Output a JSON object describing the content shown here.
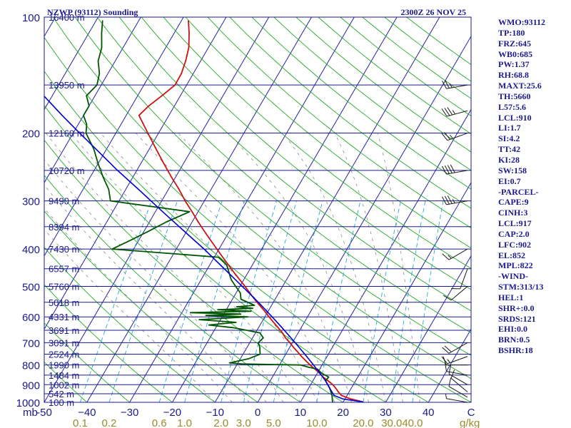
{
  "header": {
    "title": "NZWP (93112) Sounding",
    "datetime": "2300Z 26 NOV 25"
  },
  "indices": [
    "WMO:93112",
    "TP:180",
    "FRZ:645",
    "WB0:685",
    "PW:1.37",
    "RH:68.8",
    "MAXT:25.6",
    "TH:5660",
    "L57:5.6",
    "LCL:910",
    "LI:1.7",
    "SI:4.2",
    "TT:42",
    "KI:28",
    "SW:158",
    "EI:0.7",
    "-PARCEL-",
    "CAPE:9",
    "CINH:3",
    "LCL:917",
    "CAP:2.0",
    "LFC:902",
    "EL:852",
    "MPL:822",
    "-WIND-",
    "STM:313/13",
    "HEL:1",
    "SHR+:0.0",
    "SRDS:121",
    "EHI:0.0",
    "BRN:0.5",
    "BSHR:18"
  ],
  "chart_data": {
    "type": "line",
    "subtype": "skew-t log-p sounding",
    "y_scale": "log",
    "ylim": [
      1000,
      100
    ],
    "xlim": [
      -50,
      50
    ],
    "pressure_units": "mb",
    "mixing_ratio_units": "g/kg",
    "pressure_ticks": [
      {
        "value": 100,
        "label": "100"
      },
      {
        "value": 200,
        "label": "200"
      },
      {
        "value": 300,
        "label": "300"
      },
      {
        "value": 400,
        "label": "400"
      },
      {
        "value": 500,
        "label": "500"
      },
      {
        "value": 600,
        "label": "600"
      },
      {
        "value": 700,
        "label": "700"
      },
      {
        "value": 800,
        "label": "800"
      },
      {
        "value": 900,
        "label": "900"
      },
      {
        "value": 1000,
        "label": "1000"
      }
    ],
    "temperature_ticks": [
      {
        "value": -50,
        "label": "-50"
      },
      {
        "value": -40,
        "label": "−40"
      },
      {
        "value": -30,
        "label": "−30"
      },
      {
        "value": -20,
        "label": "−20"
      },
      {
        "value": -10,
        "label": "−10"
      },
      {
        "value": 0,
        "label": "0"
      },
      {
        "value": 10,
        "label": "10"
      },
      {
        "value": 20,
        "label": "20"
      },
      {
        "value": 30,
        "label": "30"
      },
      {
        "value": 40,
        "label": "40"
      },
      {
        "value": 50,
        "label": "C"
      }
    ],
    "mixing_ratio_ticks": [
      {
        "value": 0.1,
        "label": "0.1"
      },
      {
        "value": 0.2,
        "label": "0.2"
      },
      {
        "value": 0.6,
        "label": "0.6"
      },
      {
        "value": 1.0,
        "label": "1.0"
      },
      {
        "value": 2.0,
        "label": "2.0"
      },
      {
        "value": 3.0,
        "label": "3.0"
      },
      {
        "value": 5.0,
        "label": "5.0"
      },
      {
        "value": 10.0,
        "label": "10.0"
      },
      {
        "value": 20.0,
        "label": "20.0"
      },
      {
        "value": 30.0,
        "label": "30.0"
      },
      {
        "value": 40.0,
        "label": "40.0"
      }
    ],
    "height_labels": [
      {
        "p": 100,
        "label": "16400 m"
      },
      {
        "p": 150,
        "label": "13950 m"
      },
      {
        "p": 200,
        "label": "12160 m"
      },
      {
        "p": 250,
        "label": "10720 m"
      },
      {
        "p": 300,
        "label": "9490 m"
      },
      {
        "p": 350,
        "label": "8394 m"
      },
      {
        "p": 400,
        "label": "7430 m"
      },
      {
        "p": 450,
        "label": "6557 m"
      },
      {
        "p": 500,
        "label": "5760 m"
      },
      {
        "p": 550,
        "label": "5018 m"
      },
      {
        "p": 600,
        "label": "4331 m"
      },
      {
        "p": 650,
        "label": "3691 m"
      },
      {
        "p": 700,
        "label": "3091 m"
      },
      {
        "p": 750,
        "label": "2524 m"
      },
      {
        "p": 800,
        "label": "1990 m"
      },
      {
        "p": 850,
        "label": "1484 m"
      },
      {
        "p": 900,
        "label": "1002 m"
      },
      {
        "p": 950,
        "label": "542 m"
      },
      {
        "p": 1000,
        "label": "100 m"
      }
    ],
    "temperature_profile": [
      [
        998,
        24.7
      ],
      [
        980,
        21.4
      ],
      [
        960,
        18.7
      ],
      [
        940,
        17.5
      ],
      [
        920,
        16.4
      ],
      [
        900,
        15.2
      ],
      [
        880,
        13.6
      ],
      [
        860,
        11.9
      ],
      [
        840,
        10.5
      ],
      [
        820,
        8.9
      ],
      [
        800,
        7.2
      ],
      [
        780,
        5.6
      ],
      [
        760,
        4.0
      ],
      [
        740,
        2.5
      ],
      [
        720,
        0.9
      ],
      [
        700,
        -0.6
      ],
      [
        680,
        -2.3
      ],
      [
        660,
        -3.7
      ],
      [
        640,
        -5.4
      ],
      [
        620,
        -7.2
      ],
      [
        600,
        -9.0
      ],
      [
        580,
        -10.8
      ],
      [
        560,
        -12.8
      ],
      [
        540,
        -14.8
      ],
      [
        520,
        -16.8
      ],
      [
        500,
        -18.8
      ],
      [
        480,
        -21.0
      ],
      [
        460,
        -23.3
      ],
      [
        440,
        -25.6
      ],
      [
        420,
        -28.0
      ],
      [
        400,
        -30.5
      ],
      [
        380,
        -33.1
      ],
      [
        360,
        -35.8
      ],
      [
        340,
        -38.6
      ],
      [
        320,
        -41.4
      ],
      [
        300,
        -44.5
      ],
      [
        280,
        -47.5
      ],
      [
        260,
        -51.0
      ],
      [
        240,
        -54.6
      ],
      [
        220,
        -58.4
      ],
      [
        200,
        -62.5
      ],
      [
        190,
        -64.7
      ],
      [
        180,
        -67.0
      ],
      [
        170,
        -66.0
      ],
      [
        160,
        -64.3
      ],
      [
        150,
        -62.7
      ],
      [
        140,
        -62.8
      ],
      [
        130,
        -63.5
      ],
      [
        120,
        -64.6
      ],
      [
        110,
        -66.5
      ],
      [
        102,
        -68.4
      ]
    ],
    "dewpoint_profile": [
      [
        998,
        17.5
      ],
      [
        960,
        16.5
      ],
      [
        920,
        15.0
      ],
      [
        880,
        13.0
      ],
      [
        860,
        13.2
      ],
      [
        840,
        11.0
      ],
      [
        820,
        9.5
      ],
      [
        810,
        7.0
      ],
      [
        800,
        5.0
      ],
      [
        795,
        -9.0
      ],
      [
        790,
        -12.0
      ],
      [
        770,
        -8.0
      ],
      [
        750,
        -6.0
      ],
      [
        720,
        -7.0
      ],
      [
        700,
        -8.0
      ],
      [
        680,
        -7.5
      ],
      [
        660,
        -9.0
      ],
      [
        640,
        -16.0
      ],
      [
        630,
        -22.0
      ],
      [
        620,
        -16.0
      ],
      [
        610,
        -25.0
      ],
      [
        600,
        -14.0
      ],
      [
        595,
        -24.0
      ],
      [
        590,
        -16.0
      ],
      [
        585,
        -28.0
      ],
      [
        580,
        -14.0
      ],
      [
        575,
        -22.0
      ],
      [
        570,
        -14.0
      ],
      [
        565,
        -18.0
      ],
      [
        560,
        -14.0
      ],
      [
        540,
        -18.0
      ],
      [
        520,
        -19.0
      ],
      [
        500,
        -21.0
      ],
      [
        480,
        -23.0
      ],
      [
        440,
        -26.0
      ],
      [
        420,
        -29.0
      ],
      [
        400,
        -55.0
      ],
      [
        380,
        -52.0
      ],
      [
        360,
        -49.0
      ],
      [
        340,
        -46.0
      ],
      [
        320,
        -42.0
      ],
      [
        300,
        -62.0
      ],
      [
        280,
        -64.0
      ],
      [
        260,
        -67.0
      ],
      [
        240,
        -70.0
      ],
      [
        220,
        -73.0
      ],
      [
        200,
        -77.0
      ],
      [
        190,
        -78.0
      ],
      [
        180,
        -80.0
      ],
      [
        170,
        -80.0
      ],
      [
        160,
        -82.0
      ],
      [
        150,
        -81.0
      ],
      [
        140,
        -82.0
      ],
      [
        130,
        -84.0
      ],
      [
        120,
        -85.0
      ],
      [
        110,
        -87.0
      ],
      [
        102,
        -88.5
      ]
    ],
    "parcel_profile": [
      [
        998,
        24.7
      ],
      [
        980,
        19.5
      ],
      [
        960,
        17.0
      ],
      [
        940,
        16.0
      ],
      [
        920,
        15.0
      ],
      [
        900,
        14.0
      ],
      [
        880,
        13.0
      ],
      [
        860,
        11.8
      ],
      [
        840,
        10.6
      ],
      [
        820,
        9.3
      ],
      [
        800,
        8.0
      ],
      [
        760,
        5.2
      ],
      [
        720,
        2.2
      ],
      [
        680,
        -1.0
      ],
      [
        640,
        -4.5
      ],
      [
        600,
        -8.3
      ],
      [
        560,
        -12.4
      ],
      [
        520,
        -17.0
      ],
      [
        480,
        -22.0
      ],
      [
        440,
        -27.5
      ],
      [
        400,
        -33.5
      ],
      [
        360,
        -40.5
      ],
      [
        320,
        -48.3
      ],
      [
        280,
        -57.0
      ],
      [
        250,
        -64.5
      ],
      [
        220,
        -72.5
      ],
      [
        200,
        -78.5
      ],
      [
        180,
        -85.0
      ],
      [
        160,
        -92.0
      ],
      [
        140,
        -99.0
      ],
      [
        130,
        -103.0
      ],
      [
        120,
        -107.0
      ],
      [
        110,
        -111.0
      ],
      [
        105,
        -113.0
      ]
    ],
    "wind_levels": [
      {
        "p": 1000,
        "dir": 280,
        "spd": 5
      },
      {
        "p": 970,
        "dir": 300,
        "spd": 10
      },
      {
        "p": 940,
        "dir": 310,
        "spd": 10
      },
      {
        "p": 900,
        "dir": 300,
        "spd": 10
      },
      {
        "p": 850,
        "dir": 280,
        "spd": 10
      },
      {
        "p": 800,
        "dir": 270,
        "spd": 10
      },
      {
        "p": 760,
        "dir": 250,
        "spd": 15
      },
      {
        "p": 700,
        "dir": 240,
        "spd": 20
      },
      {
        "p": 500,
        "dir": 230,
        "spd": 10
      },
      {
        "p": 450,
        "dir": 200,
        "spd": 10
      },
      {
        "p": 400,
        "dir": 240,
        "spd": 15
      },
      {
        "p": 300,
        "dir": 260,
        "spd": 35
      },
      {
        "p": 250,
        "dir": 260,
        "spd": 40
      },
      {
        "p": 200,
        "dir": 250,
        "spd": 25
      },
      {
        "p": 175,
        "dir": 255,
        "spd": 35
      },
      {
        "p": 150,
        "dir": 260,
        "spd": 25
      }
    ]
  },
  "colors": {
    "frame": "#1a1a8c",
    "isobar": "#1a1a8c",
    "isotherm": "#2222aa",
    "dry_adiabat": "#22aa22",
    "moist_adiabat": "#888888",
    "mixing_ratio": "#22aadd",
    "temperature": "#cc1111",
    "dewpoint": "#005500",
    "parcel": "#0000cc",
    "mixing_ratio_label": "#9a8a2a",
    "wind": "#1a1a1a"
  }
}
